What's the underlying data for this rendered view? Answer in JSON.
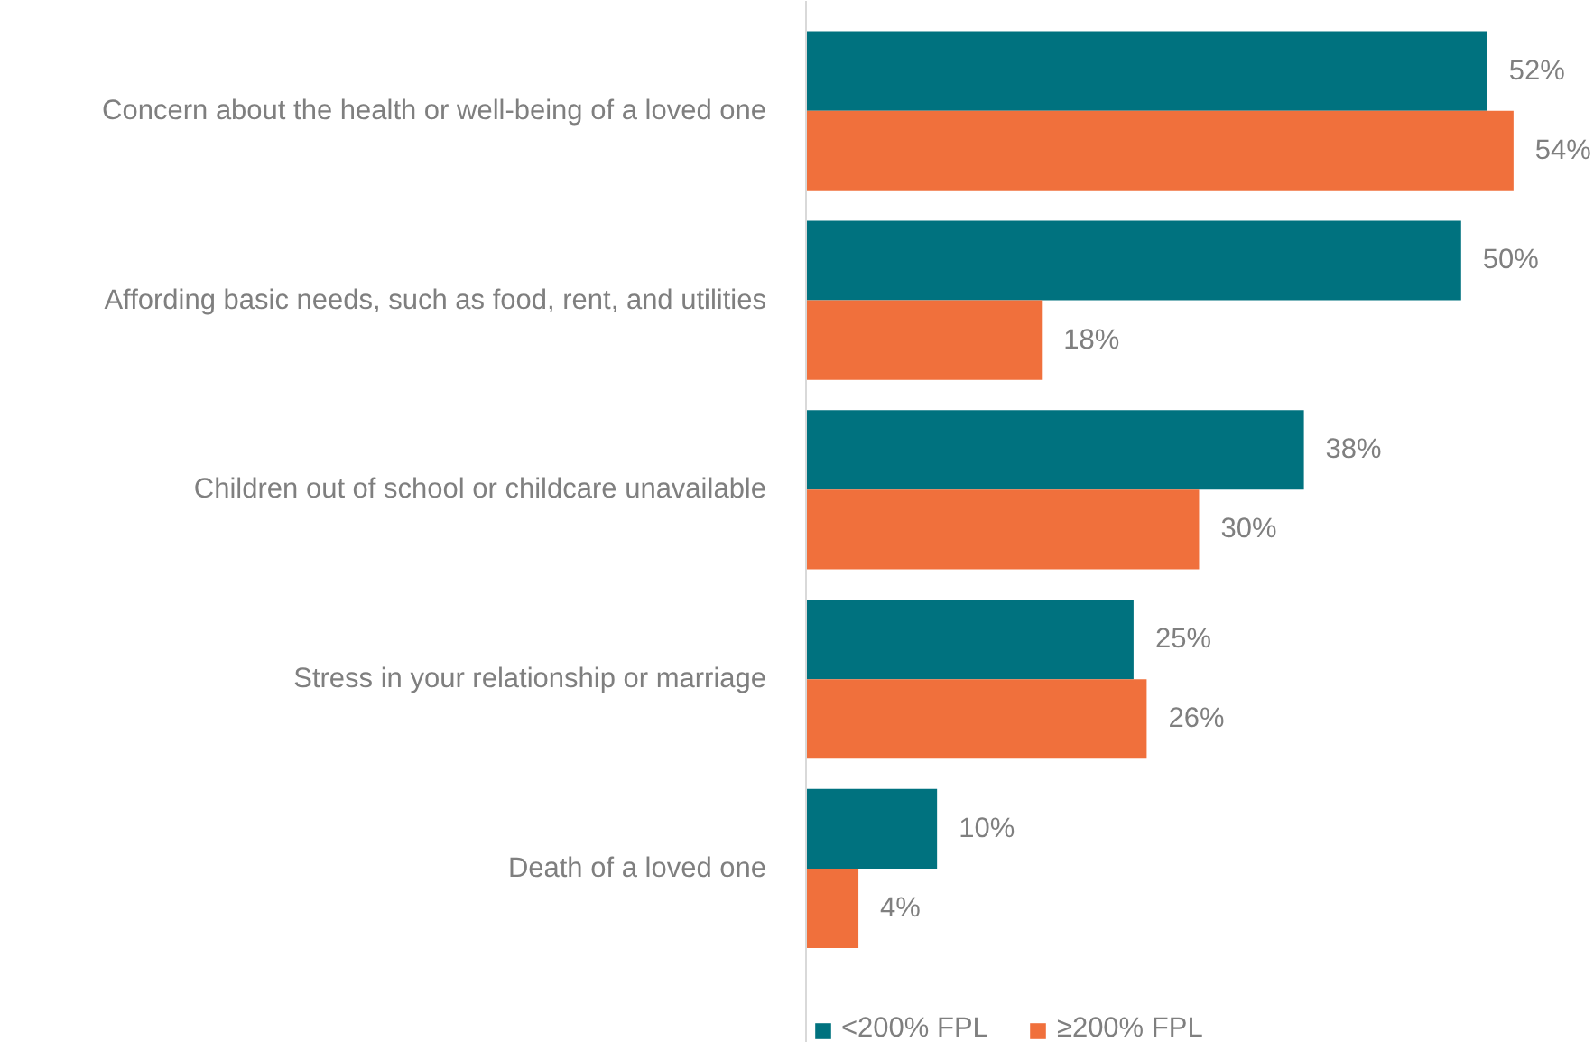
{
  "chart_data": {
    "type": "bar",
    "orientation": "horizontal",
    "categories": [
      "Concern about the health or well-being of a loved one",
      "Affording basic needs, such as food, rent, and utilities",
      "Children out of school or childcare unavailable",
      "Stress in your relationship or marriage",
      "Death of a loved one"
    ],
    "series": [
      {
        "name": "<200% FPL",
        "color": "#00727f",
        "values": [
          52,
          50,
          38,
          25,
          10
        ],
        "value_labels": [
          "52%",
          "50%",
          "38%",
          "25%",
          "10%"
        ]
      },
      {
        "name": "≥200% FPL",
        "color": "#f0703c",
        "values": [
          54,
          18,
          30,
          26,
          4
        ],
        "value_labels": [
          "54%",
          "18%",
          "30%",
          "26%",
          "4%"
        ]
      }
    ],
    "grid": false,
    "legend": "bottom"
  }
}
